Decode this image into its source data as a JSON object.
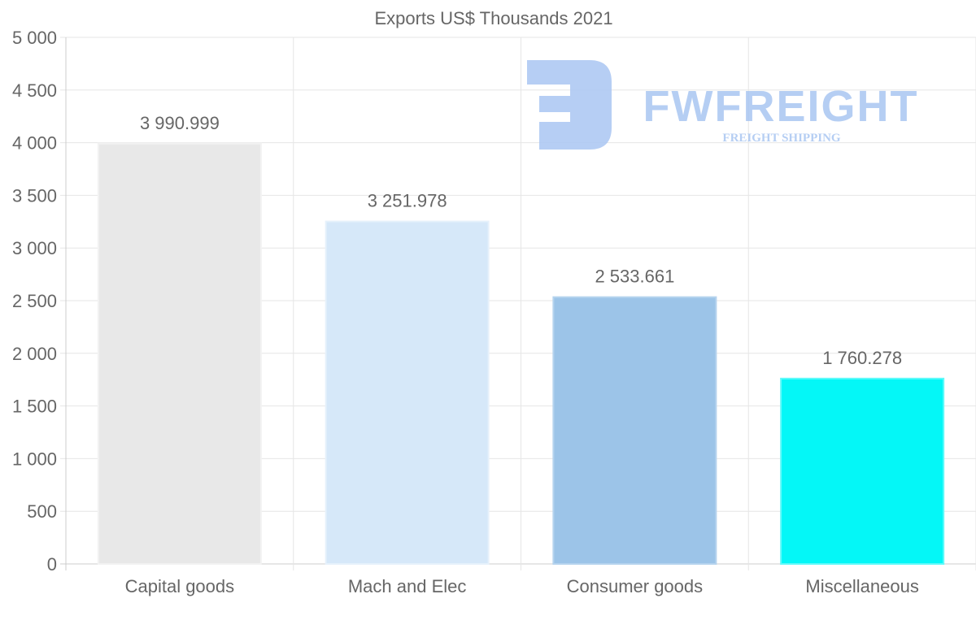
{
  "chart_data": {
    "type": "bar",
    "title": "Exports US$ Thousands 2021",
    "categories": [
      "Capital goods",
      "Mach and Elec",
      "Consumer goods",
      "Miscellaneous"
    ],
    "values": [
      3990.999,
      3251.978,
      2533.661,
      1760.278
    ],
    "value_labels": [
      "3 990.999",
      "3 251.978",
      "2 533.661",
      "1 760.278"
    ],
    "colors": [
      "#e8e8e8",
      "#d6e8f9",
      "#9cc4e8",
      "#04f7f7"
    ],
    "border_colors": [
      "#f2f2f2",
      "#e6f1fb",
      "#b5d3ee",
      "#5ffafa"
    ],
    "xlabel": "",
    "ylabel": "",
    "ylim": [
      0,
      5000
    ],
    "yticks": [
      0,
      500,
      1000,
      1500,
      2000,
      2500,
      3000,
      3500,
      4000,
      4500,
      5000
    ],
    "ytick_labels": [
      "0",
      "500",
      "1 000",
      "1 500",
      "2 000",
      "2 500",
      "3 000",
      "3 500",
      "4 000",
      "4 500",
      "5 000"
    ],
    "grid": true,
    "legend": "none"
  },
  "watermark": {
    "brand": "FWFREIGHT",
    "tagline": "FREIGHT SHIPPING",
    "color": "#a9c6f2"
  }
}
